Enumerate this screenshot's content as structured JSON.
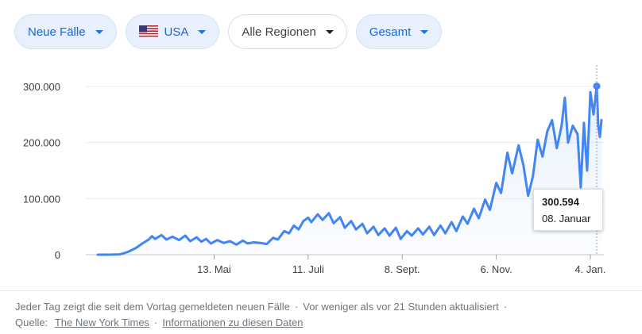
{
  "filters": {
    "metric": "Neue Fälle",
    "country": "USA",
    "region": "Alle Regionen",
    "scope": "Gesamt"
  },
  "colors": {
    "line": "#4285f4",
    "chip_blue_bg": "#e8f0fe",
    "chip_blue_text": "#1967d2"
  },
  "tooltip": {
    "value": "300.594",
    "date": "08. Januar"
  },
  "footer": {
    "description": "Jeder Tag zeigt die seit dem Vortag gemeldeten neuen Fälle",
    "updated": "Vor weniger als vor 21 Stunden aktualisiert",
    "source_label": "Quelle:",
    "source_link": "The New York Times",
    "info_link": "Informationen zu diesen Daten"
  },
  "chart_data": {
    "type": "line",
    "x_start": "2020-03-01",
    "x_end": "2021-01-11",
    "ylim": [
      0,
      300000
    ],
    "yticks": [
      0,
      100000,
      200000,
      300000
    ],
    "ytick_labels": [
      "0",
      "100.000",
      "200.000",
      "300.000"
    ],
    "xticks": [
      "2020-05-13",
      "2020-07-11",
      "2020-09-08",
      "2020-11-06",
      "2021-01-04"
    ],
    "xtick_labels": [
      "13. Mai",
      "11. Juli",
      "8. Sept.",
      "6. Nov.",
      "4. Jan."
    ],
    "highlight": {
      "date": "2021-01-08",
      "value": 300594
    },
    "series": [
      {
        "values": [
          [
            "2020-03-01",
            0
          ],
          [
            "2020-03-08",
            0
          ],
          [
            "2020-03-15",
            500
          ],
          [
            "2020-03-20",
            5000
          ],
          [
            "2020-03-25",
            12000
          ],
          [
            "2020-03-29",
            20000
          ],
          [
            "2020-04-02",
            27000
          ],
          [
            "2020-04-04",
            33000
          ],
          [
            "2020-04-06",
            28000
          ],
          [
            "2020-04-10",
            35000
          ],
          [
            "2020-04-13",
            27000
          ],
          [
            "2020-04-17",
            32000
          ],
          [
            "2020-04-21",
            26000
          ],
          [
            "2020-04-25",
            34000
          ],
          [
            "2020-04-28",
            24000
          ],
          [
            "2020-05-02",
            31000
          ],
          [
            "2020-05-05",
            23000
          ],
          [
            "2020-05-08",
            28000
          ],
          [
            "2020-05-11",
            20000
          ],
          [
            "2020-05-15",
            26000
          ],
          [
            "2020-05-19",
            21000
          ],
          [
            "2020-05-23",
            24000
          ],
          [
            "2020-05-27",
            18000
          ],
          [
            "2020-05-31",
            25000
          ],
          [
            "2020-06-03",
            20000
          ],
          [
            "2020-06-07",
            22000
          ],
          [
            "2020-06-11",
            21000
          ],
          [
            "2020-06-15",
            19000
          ],
          [
            "2020-06-19",
            30000
          ],
          [
            "2020-06-22",
            27000
          ],
          [
            "2020-06-26",
            42000
          ],
          [
            "2020-06-29",
            38000
          ],
          [
            "2020-07-02",
            52000
          ],
          [
            "2020-07-05",
            45000
          ],
          [
            "2020-07-08",
            60000
          ],
          [
            "2020-07-11",
            66000
          ],
          [
            "2020-07-13",
            58000
          ],
          [
            "2020-07-17",
            72000
          ],
          [
            "2020-07-20",
            62000
          ],
          [
            "2020-07-24",
            74000
          ],
          [
            "2020-07-27",
            56000
          ],
          [
            "2020-07-31",
            67000
          ],
          [
            "2020-08-03",
            48000
          ],
          [
            "2020-08-07",
            60000
          ],
          [
            "2020-08-10",
            45000
          ],
          [
            "2020-08-14",
            55000
          ],
          [
            "2020-08-17",
            38000
          ],
          [
            "2020-08-21",
            50000
          ],
          [
            "2020-08-24",
            35000
          ],
          [
            "2020-08-28",
            47000
          ],
          [
            "2020-08-31",
            34000
          ],
          [
            "2020-09-04",
            48000
          ],
          [
            "2020-09-07",
            28000
          ],
          [
            "2020-09-11",
            42000
          ],
          [
            "2020-09-14",
            34000
          ],
          [
            "2020-09-18",
            47000
          ],
          [
            "2020-09-21",
            36000
          ],
          [
            "2020-09-25",
            50000
          ],
          [
            "2020-09-28",
            35000
          ],
          [
            "2020-10-02",
            52000
          ],
          [
            "2020-10-05",
            38000
          ],
          [
            "2020-10-09",
            58000
          ],
          [
            "2020-10-12",
            42000
          ],
          [
            "2020-10-16",
            68000
          ],
          [
            "2020-10-19",
            55000
          ],
          [
            "2020-10-23",
            82000
          ],
          [
            "2020-10-26",
            65000
          ],
          [
            "2020-10-30",
            98000
          ],
          [
            "2020-11-02",
            80000
          ],
          [
            "2020-11-06",
            128000
          ],
          [
            "2020-11-09",
            110000
          ],
          [
            "2020-11-13",
            182000
          ],
          [
            "2020-11-16",
            145000
          ],
          [
            "2020-11-20",
            195000
          ],
          [
            "2020-11-23",
            160000
          ],
          [
            "2020-11-26",
            105000
          ],
          [
            "2020-11-29",
            140000
          ],
          [
            "2020-12-02",
            205000
          ],
          [
            "2020-12-05",
            175000
          ],
          [
            "2020-12-08",
            220000
          ],
          [
            "2020-12-11",
            240000
          ],
          [
            "2020-12-14",
            190000
          ],
          [
            "2020-12-17",
            230000
          ],
          [
            "2020-12-19",
            280000
          ],
          [
            "2020-12-21",
            200000
          ],
          [
            "2020-12-24",
            230000
          ],
          [
            "2020-12-27",
            215000
          ],
          [
            "2020-12-29",
            120000
          ],
          [
            "2020-12-31",
            235000
          ],
          [
            "2021-01-02",
            150000
          ],
          [
            "2021-01-04",
            290000
          ],
          [
            "2021-01-06",
            250000
          ],
          [
            "2021-01-08",
            300594
          ],
          [
            "2021-01-09",
            230000
          ],
          [
            "2021-01-10",
            210000
          ],
          [
            "2021-01-11",
            240000
          ]
        ]
      }
    ]
  }
}
